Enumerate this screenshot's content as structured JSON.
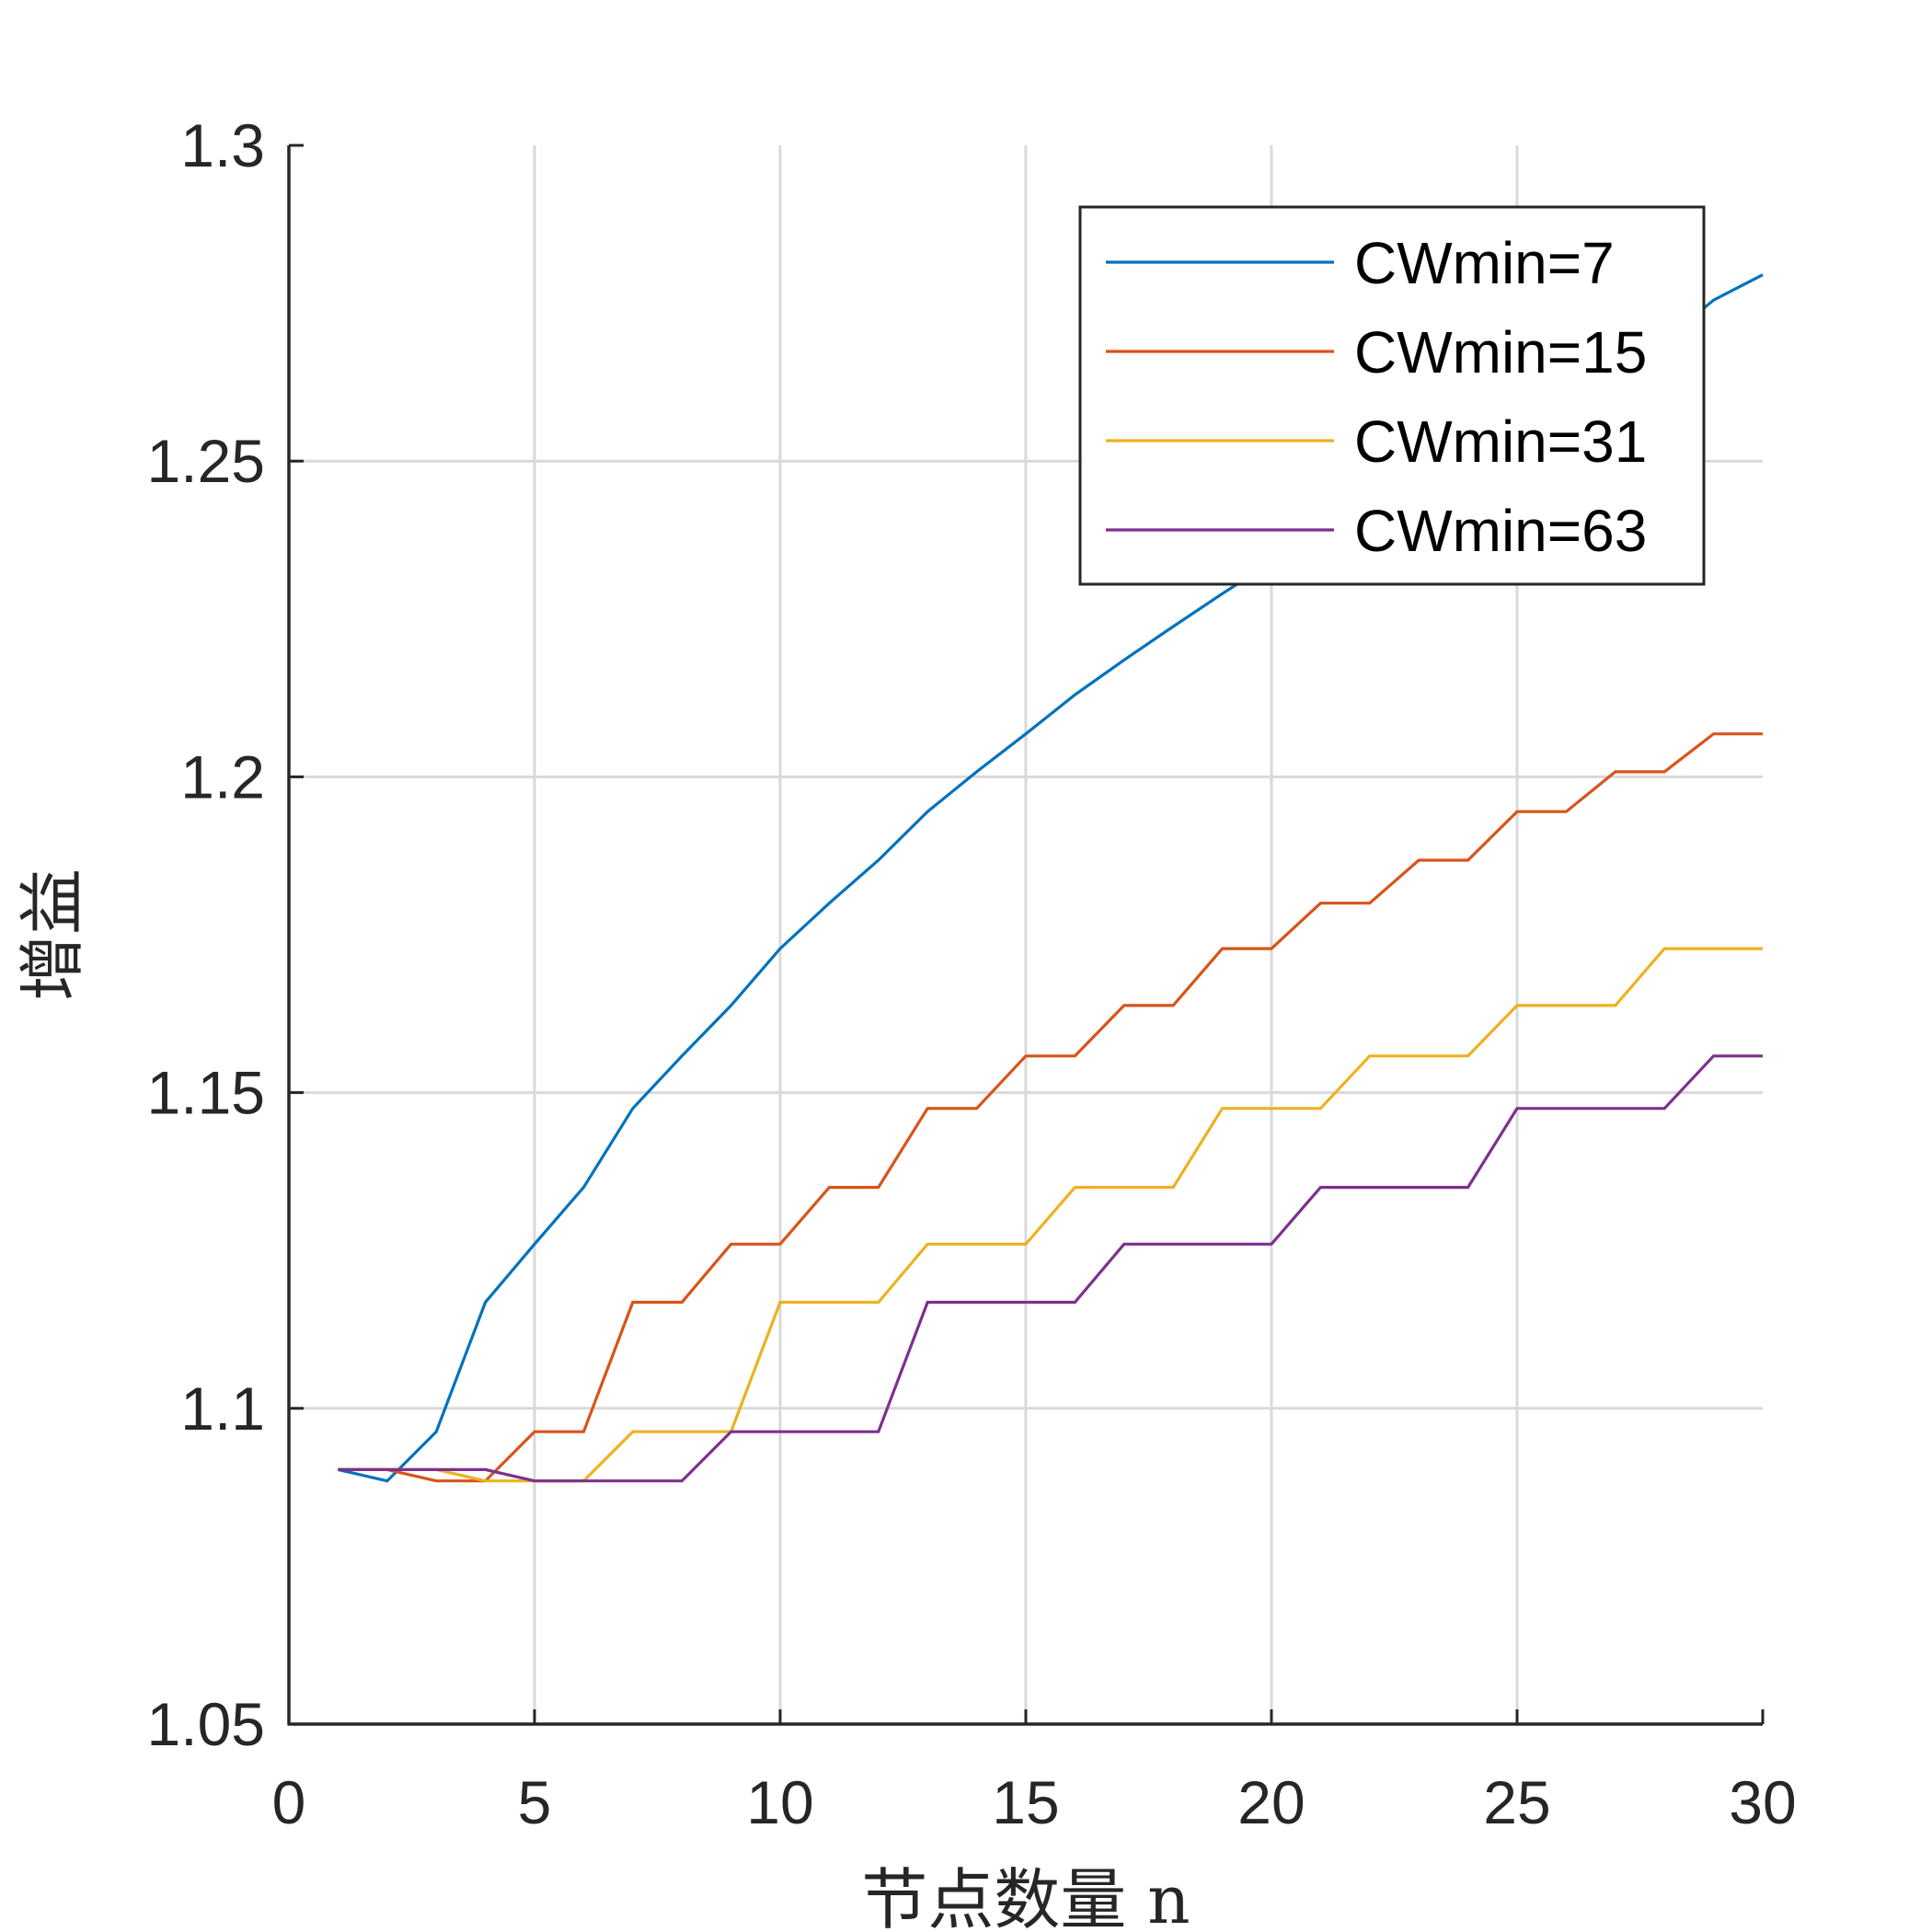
{
  "chart_data": {
    "type": "line",
    "xlabel": "节点数量 n",
    "ylabel": "增益",
    "xlim": [
      0,
      30
    ],
    "ylim": [
      1.05,
      1.3
    ],
    "xticks": [
      0,
      5,
      10,
      15,
      20,
      25,
      30
    ],
    "yticks": [
      1.05,
      1.1,
      1.15,
      1.2,
      1.25,
      1.3
    ],
    "xtick_labels": [
      "0",
      "5",
      "10",
      "15",
      "20",
      "25",
      "30"
    ],
    "ytick_labels": [
      "1.05",
      "1.1",
      "1.15",
      "1.2",
      "1.25",
      "1.3"
    ],
    "grid": true,
    "legend_position": "top-right",
    "x": [
      1,
      2,
      3,
      4,
      5,
      6,
      7,
      8,
      9,
      10,
      11,
      12,
      13,
      14,
      15,
      16,
      17,
      18,
      19,
      20,
      21,
      22,
      23,
      24,
      25,
      26,
      27,
      28,
      29,
      30
    ],
    "series": [
      {
        "name": "CWmin=7",
        "color": "#0072BD",
        "values": [
          1.0903,
          1.0885,
          1.0963,
          1.1168,
          1.126,
          1.135,
          1.1475,
          1.1558,
          1.1638,
          1.1728,
          1.18,
          1.1868,
          1.1945,
          1.2008,
          1.2068,
          1.213,
          1.2185,
          1.2238,
          1.229,
          1.234,
          1.2388,
          1.2435,
          1.248,
          1.2525,
          1.2568,
          1.261,
          1.265,
          1.269,
          1.2755,
          1.2795
        ]
      },
      {
        "name": "CWmin=15",
        "color": "#D95319",
        "values": [
          1.0903,
          1.0903,
          1.0885,
          1.0885,
          1.0963,
          1.0963,
          1.1168,
          1.1168,
          1.126,
          1.126,
          1.135,
          1.135,
          1.1475,
          1.1475,
          1.1558,
          1.1558,
          1.1638,
          1.1638,
          1.1728,
          1.1728,
          1.18,
          1.18,
          1.1868,
          1.1868,
          1.1945,
          1.1945,
          1.2008,
          1.2008,
          1.2068,
          1.2068
        ]
      },
      {
        "name": "CWmin=31",
        "color": "#EDB120",
        "values": [
          1.0903,
          1.0903,
          1.0903,
          1.0885,
          1.0885,
          1.0885,
          1.0963,
          1.0963,
          1.0963,
          1.1168,
          1.1168,
          1.1168,
          1.126,
          1.126,
          1.126,
          1.135,
          1.135,
          1.135,
          1.1475,
          1.1475,
          1.1475,
          1.1558,
          1.1558,
          1.1558,
          1.1638,
          1.1638,
          1.1638,
          1.1728,
          1.1728,
          1.1728
        ]
      },
      {
        "name": "CWmin=63",
        "color": "#7E2F8E",
        "values": [
          1.0903,
          1.0903,
          1.0903,
          1.0903,
          1.0885,
          1.0885,
          1.0885,
          1.0885,
          1.0963,
          1.0963,
          1.0963,
          1.0963,
          1.1168,
          1.1168,
          1.1168,
          1.1168,
          1.126,
          1.126,
          1.126,
          1.126,
          1.135,
          1.135,
          1.135,
          1.135,
          1.1475,
          1.1475,
          1.1475,
          1.1475,
          1.1558,
          1.1558
        ]
      }
    ]
  }
}
